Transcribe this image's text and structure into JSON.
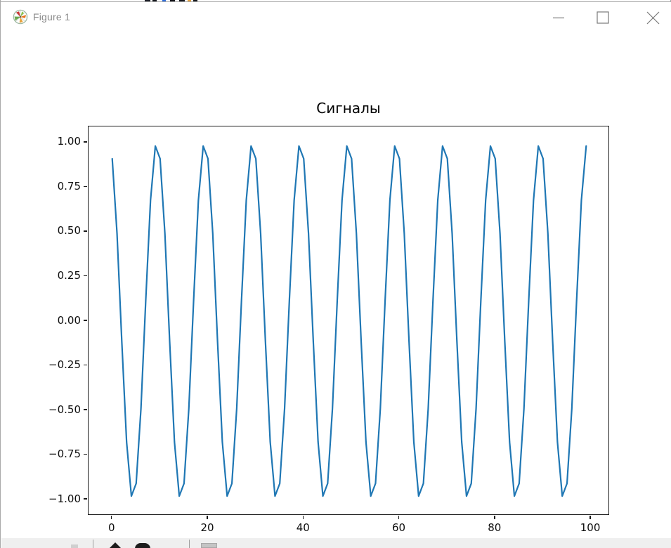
{
  "window": {
    "title": "Figure 1",
    "icon": "matplotlib-logo-icon",
    "controls": [
      "minimize",
      "maximize",
      "close"
    ],
    "border_color": "#a9a9a9",
    "title_color": "#8a8a8a"
  },
  "chart_data": {
    "type": "line",
    "title": "Сигналы",
    "xlabel": "",
    "ylabel": "",
    "grid": false,
    "legend": null,
    "line_color": "#1f77b4",
    "line_width": 2.2,
    "xlim": [
      -4.95,
      103.95
    ],
    "ylim": [
      -1.09,
      1.09
    ],
    "xticks": [
      {
        "v": 0,
        "label": "0"
      },
      {
        "v": 20,
        "label": "20"
      },
      {
        "v": 40,
        "label": "40"
      },
      {
        "v": 60,
        "label": "60"
      },
      {
        "v": 80,
        "label": "80"
      },
      {
        "v": 100,
        "label": "100"
      }
    ],
    "yticks": [
      {
        "v": 1.0,
        "label": "1.00"
      },
      {
        "v": 0.75,
        "label": "0.75"
      },
      {
        "v": 0.5,
        "label": "0.50"
      },
      {
        "v": 0.25,
        "label": "0.25"
      },
      {
        "v": 0.0,
        "label": "0.00"
      },
      {
        "v": -0.25,
        "label": "−0.25"
      },
      {
        "v": -0.5,
        "label": "−0.50"
      },
      {
        "v": -0.75,
        "label": "−0.75"
      },
      {
        "v": -1.0,
        "label": "−1.00"
      }
    ],
    "x_start": 0,
    "x_step": 1,
    "n_points": 100,
    "formula": "y = sin(0.2*pi*x + 2), x = 0..99",
    "y": [
      0.9093,
      0.491,
      -0.1148,
      -0.6769,
      -0.9803,
      -0.9093,
      -0.491,
      0.1148,
      0.6769,
      0.9803,
      0.9093,
      0.491,
      -0.1148,
      -0.6769,
      -0.9803,
      -0.9093,
      -0.491,
      0.1148,
      0.6769,
      0.9803,
      0.9093,
      0.491,
      -0.1148,
      -0.6769,
      -0.9803,
      -0.9093,
      -0.491,
      0.1148,
      0.6769,
      0.9803,
      0.9093,
      0.491,
      -0.1148,
      -0.6769,
      -0.9803,
      -0.9093,
      -0.491,
      0.1148,
      0.6769,
      0.9803,
      0.9093,
      0.491,
      -0.1148,
      -0.6769,
      -0.9803,
      -0.9093,
      -0.491,
      0.1148,
      0.6769,
      0.9803,
      0.9093,
      0.491,
      -0.1148,
      -0.6769,
      -0.9803,
      -0.9093,
      -0.491,
      0.1148,
      0.6769,
      0.9803,
      0.9093,
      0.491,
      -0.1148,
      -0.6769,
      -0.9803,
      -0.9093,
      -0.491,
      0.1148,
      0.6769,
      0.9803,
      0.9093,
      0.491,
      -0.1148,
      -0.6769,
      -0.9803,
      -0.9093,
      -0.491,
      0.1148,
      0.6769,
      0.9803,
      0.9093,
      0.491,
      -0.1148,
      -0.6769,
      -0.9803,
      -0.9093,
      -0.491,
      0.1148,
      0.6769,
      0.9803,
      0.9093,
      0.491,
      -0.1148,
      -0.6769,
      -0.9803,
      -0.9093,
      -0.491,
      0.1148,
      0.6769,
      0.9803
    ]
  },
  "toolbar": {
    "icons": [
      "home",
      "back",
      "forward",
      "pan",
      "zoom-to-rect",
      "configure-subplots",
      "save"
    ],
    "note": "matplotlib navigation toolbar, clipped at bottom edge of screenshot"
  }
}
